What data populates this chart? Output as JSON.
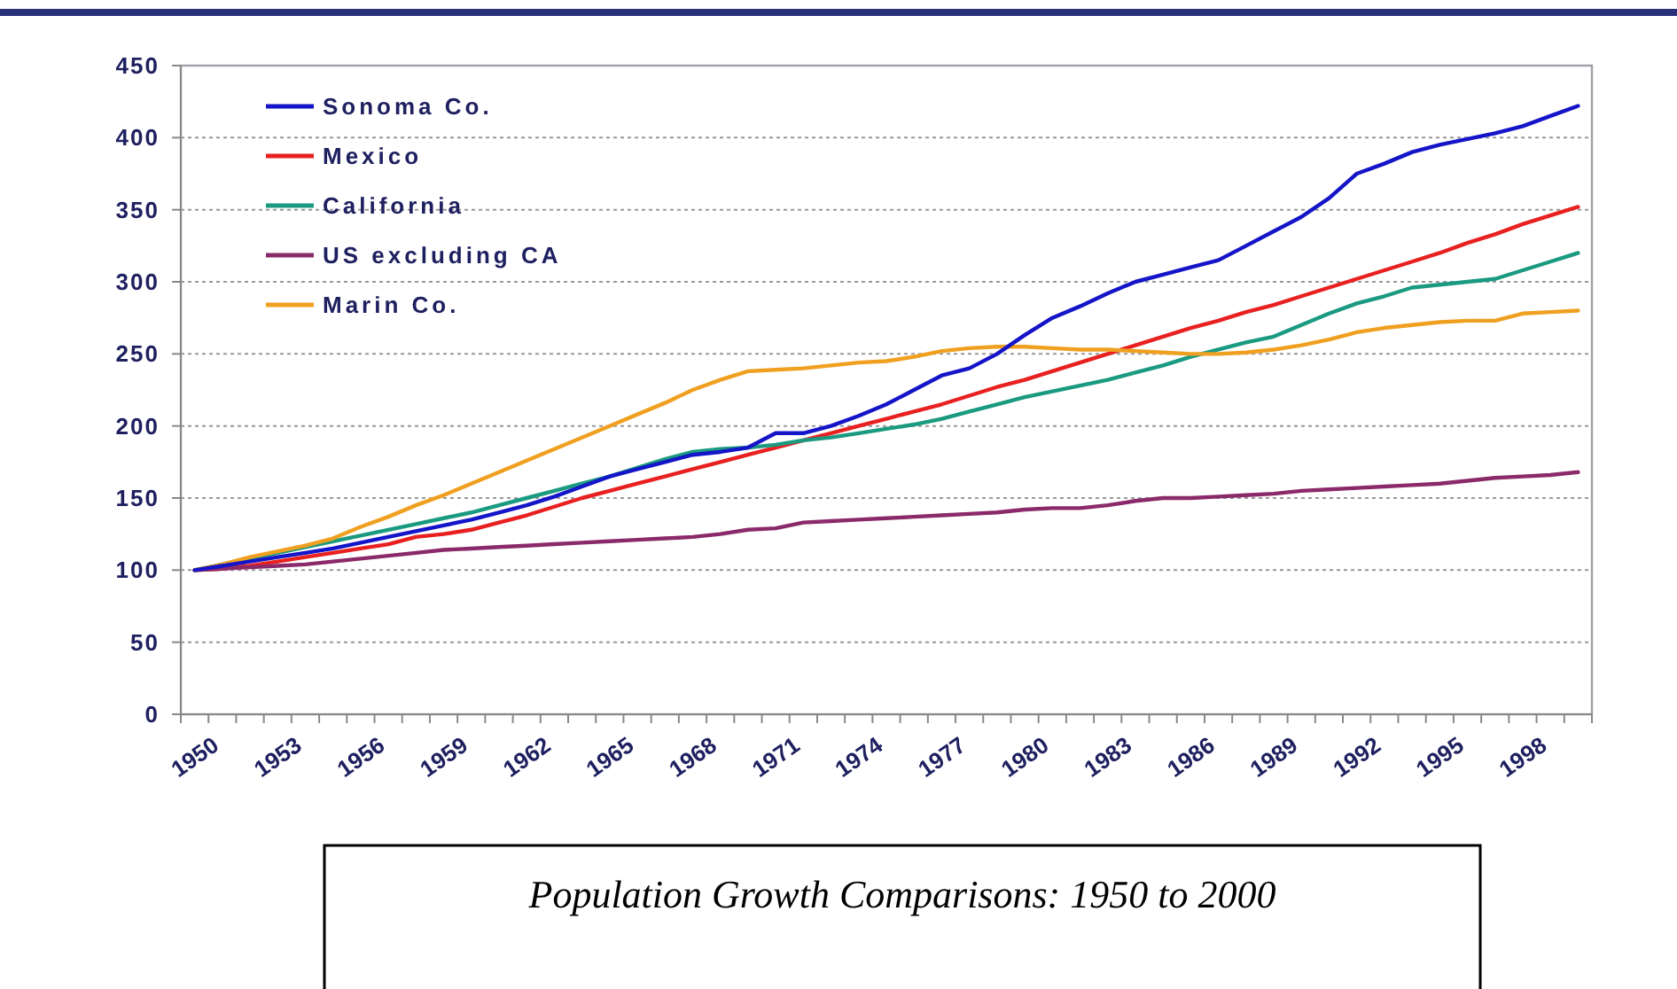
{
  "chart_data": {
    "type": "line",
    "categories": [
      "1950",
      null,
      null,
      "1953",
      null,
      null,
      "1956",
      null,
      null,
      "1959",
      null,
      null,
      "1962",
      null,
      null,
      "1965",
      null,
      null,
      "1968",
      null,
      null,
      "1971",
      null,
      null,
      "1974",
      null,
      null,
      "1977",
      null,
      null,
      "1980",
      null,
      null,
      "1983",
      null,
      null,
      "1986",
      null,
      null,
      "1989",
      null,
      null,
      "1992",
      null,
      null,
      "1995",
      null,
      null,
      "1998",
      null,
      null
    ],
    "series": [
      {
        "name": "Sonoma Co.",
        "color": "#1414c8",
        "values": [
          100,
          103,
          106,
          109,
          112,
          115,
          119,
          123,
          127,
          131,
          135,
          140,
          145,
          151,
          158,
          165,
          170,
          175,
          180,
          182,
          185,
          195,
          195,
          200,
          207,
          215,
          225,
          235,
          240,
          250,
          263,
          275,
          283,
          292,
          300,
          305,
          310,
          315,
          325,
          335,
          345,
          358,
          375,
          382,
          390,
          395,
          399,
          403,
          408,
          415,
          422
        ]
      },
      {
        "name": "Mexico",
        "color": "#e82020",
        "values": [
          100,
          101,
          103,
          106,
          109,
          112,
          115,
          118,
          123,
          125,
          128,
          133,
          138,
          144,
          150,
          155,
          160,
          165,
          170,
          175,
          180,
          185,
          190,
          195,
          200,
          205,
          210,
          215,
          221,
          227,
          232,
          238,
          244,
          250,
          256,
          262,
          268,
          273,
          279,
          284,
          290,
          296,
          302,
          308,
          314,
          320,
          327,
          333,
          340,
          346,
          352
        ]
      },
      {
        "name": "California",
        "color": "#1a9a80",
        "values": [
          100,
          104,
          108,
          112,
          116,
          120,
          124,
          128,
          132,
          136,
          140,
          145,
          150,
          155,
          160,
          165,
          171,
          177,
          182,
          184,
          185,
          187,
          190,
          192,
          195,
          198,
          201,
          205,
          210,
          215,
          220,
          224,
          228,
          232,
          237,
          242,
          248,
          253,
          258,
          262,
          270,
          278,
          285,
          290,
          296,
          298,
          300,
          302,
          308,
          314,
          320
        ]
      },
      {
        "name": "US excluding CA",
        "color": "#8b2a6a",
        "values": [
          100,
          101,
          102,
          103,
          104,
          106,
          108,
          110,
          112,
          114,
          115,
          116,
          117,
          118,
          119,
          120,
          121,
          122,
          123,
          125,
          128,
          129,
          133,
          134,
          135,
          136,
          137,
          138,
          139,
          140,
          142,
          143,
          143,
          145,
          148,
          150,
          150,
          151,
          152,
          153,
          155,
          156,
          157,
          158,
          159,
          160,
          162,
          164,
          165,
          166,
          168
        ]
      },
      {
        "name": "Marin Co.",
        "color": "#f0a020",
        "values": [
          100,
          104,
          109,
          113,
          117,
          122,
          130,
          137,
          145,
          152,
          160,
          168,
          176,
          184,
          192,
          200,
          208,
          216,
          225,
          232,
          238,
          239,
          240,
          242,
          244,
          245,
          248,
          252,
          254,
          255,
          255,
          254,
          253,
          253,
          252,
          251,
          250,
          250,
          251,
          253,
          256,
          260,
          265,
          268,
          270,
          272,
          273,
          273,
          278,
          279,
          280
        ]
      }
    ],
    "ylim": [
      0,
      450
    ],
    "yticks": [
      0,
      50,
      100,
      150,
      200,
      250,
      300,
      350,
      400,
      450
    ],
    "grid": "y",
    "legend": "top left",
    "line_style": "solid",
    "marker": "none",
    "annotations": [
      "Population Growth Comparisons: 1950 to 2000"
    ]
  }
}
